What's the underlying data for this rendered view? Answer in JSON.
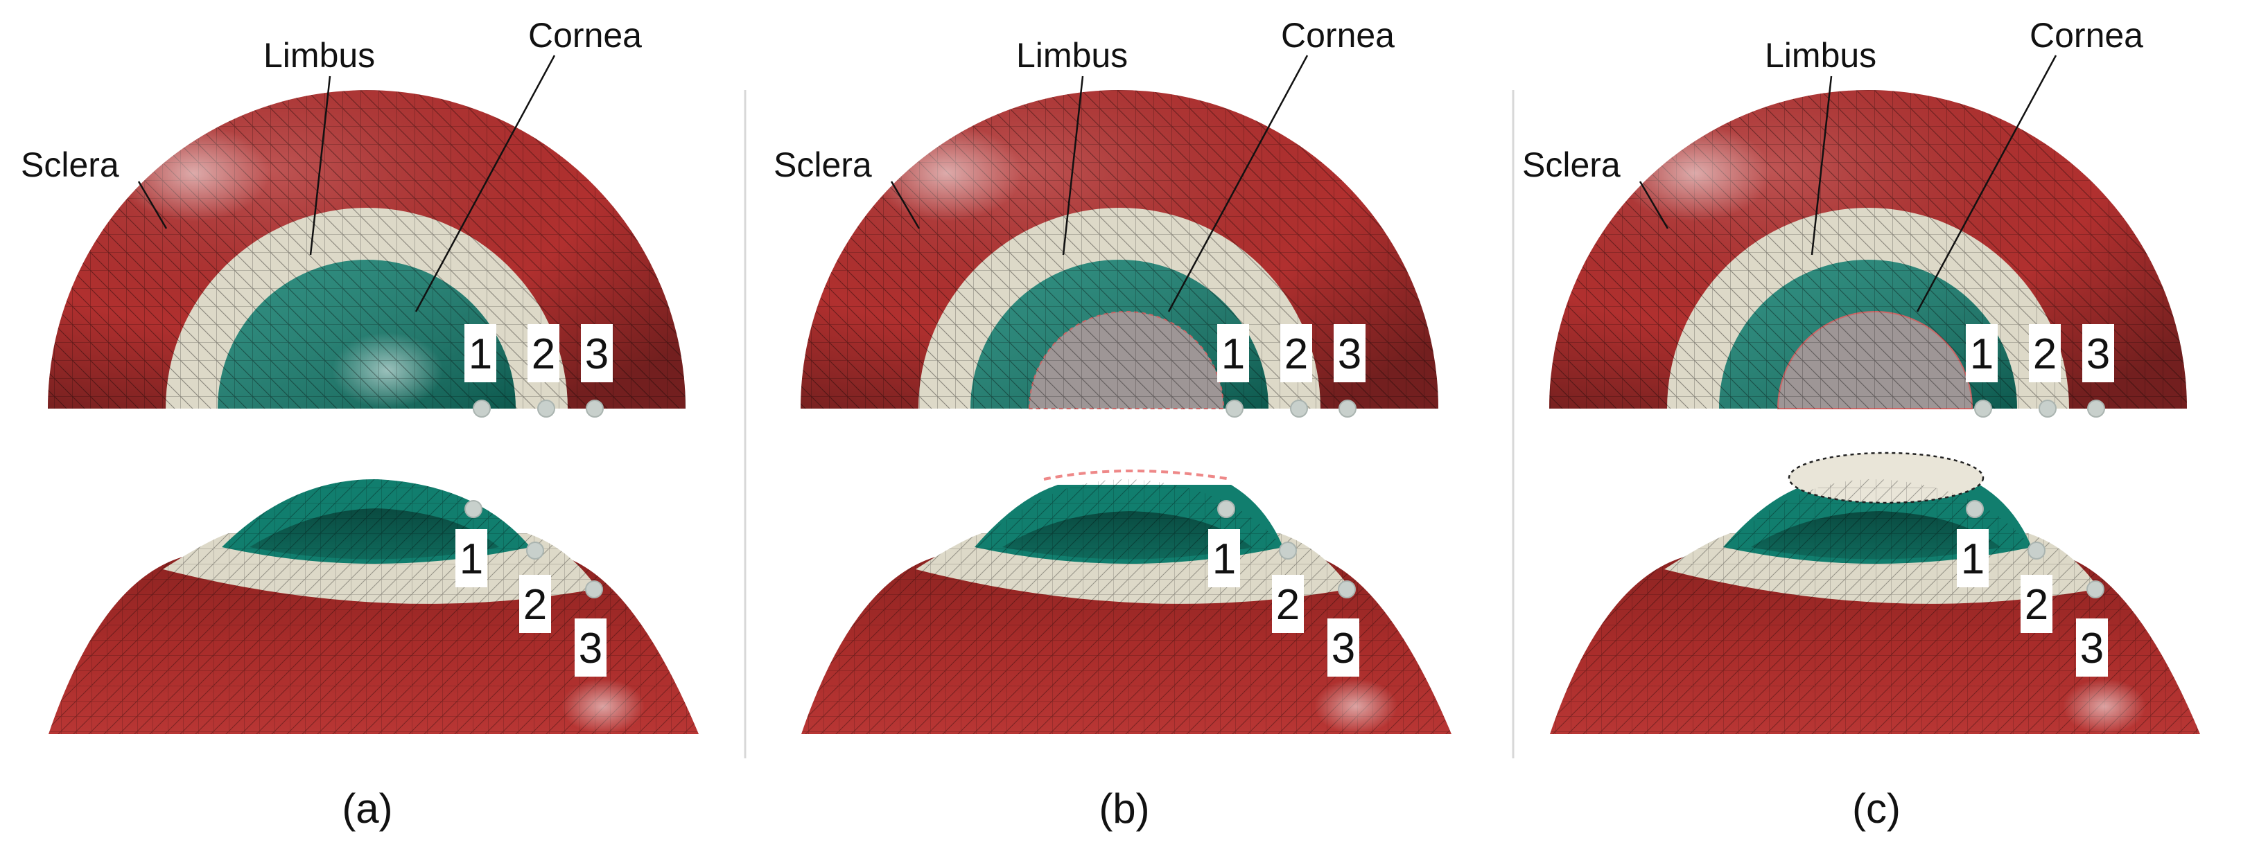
{
  "colors": {
    "sclera": "#b1302f",
    "sclera_dark": "#7e1d1b",
    "limbus": "#ddd9c8",
    "cornea": "#117e6e",
    "cornea_dark": "#0a5044",
    "hole": "#9e9696",
    "marker": "#c8d0cc",
    "divider": "#d8d8d8"
  },
  "panels": [
    {
      "caption": "(a)",
      "labels": {
        "sclera": "Sclera",
        "limbus": "Limbus",
        "cornea": "Cornea"
      },
      "top_numbers": [
        "1",
        "2",
        "3"
      ],
      "side_numbers": [
        "1",
        "2",
        "3"
      ]
    },
    {
      "caption": "(b)",
      "labels": {
        "sclera": "Sclera",
        "limbus": "Limbus",
        "cornea": "Cornea"
      },
      "top_numbers": [
        "1",
        "2",
        "3"
      ],
      "side_numbers": [
        "1",
        "2",
        "3"
      ]
    },
    {
      "caption": "(c)",
      "labels": {
        "sclera": "Sclera",
        "limbus": "Limbus",
        "cornea": "Cornea"
      },
      "top_numbers": [
        "1",
        "2",
        "3"
      ],
      "side_numbers": [
        "1",
        "2",
        "3"
      ]
    }
  ]
}
